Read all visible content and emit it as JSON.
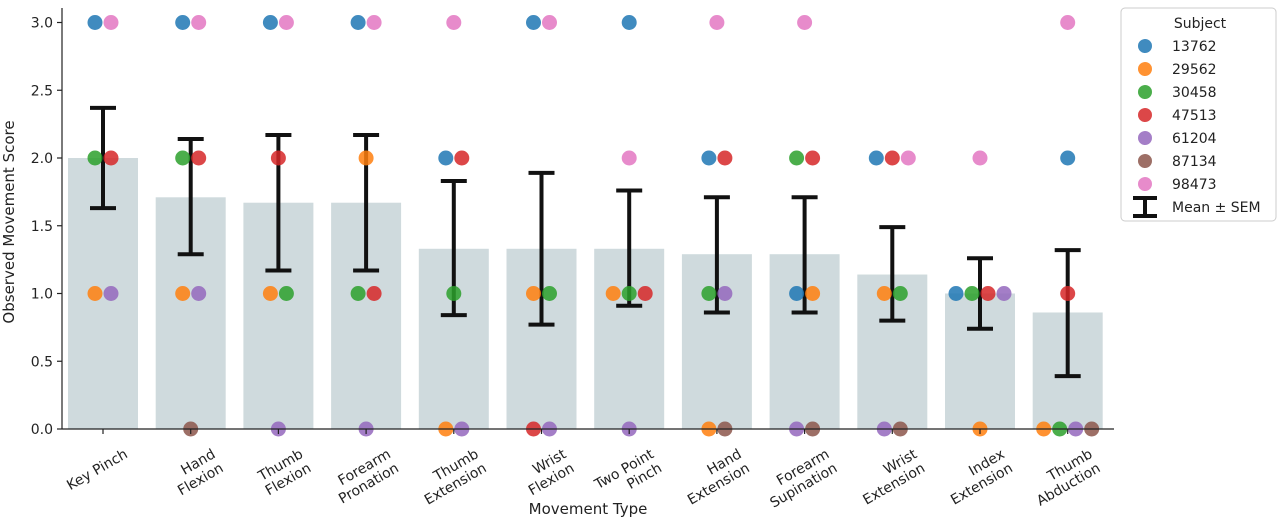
{
  "chart_data": {
    "type": "bar",
    "xlabel": "Movement Type",
    "ylabel": "Observed Movement Score",
    "ylim": [
      0,
      3.05
    ],
    "yticks": [
      0.0,
      0.5,
      1.0,
      1.5,
      2.0,
      2.5,
      3.0
    ],
    "ytick_labels": [
      "0.0",
      "0.5",
      "1.0",
      "1.5",
      "2.0",
      "2.5",
      "3.0"
    ],
    "grid": false,
    "categories": [
      [
        "Key Pinch"
      ],
      [
        "Hand",
        "Flexion"
      ],
      [
        "Thumb",
        "Flexion"
      ],
      [
        "Forearm",
        "Pronation"
      ],
      [
        "Thumb",
        "Extension"
      ],
      [
        "Wrist",
        "Flexion"
      ],
      [
        "Two Point",
        "Pinch"
      ],
      [
        "Hand",
        "Extension"
      ],
      [
        "Forearm",
        "Supination"
      ],
      [
        "Wrist",
        "Extension"
      ],
      [
        "Index",
        "Extension"
      ],
      [
        "Thumb",
        "Abduction"
      ]
    ],
    "bar_color": "#cfdadd",
    "means": [
      2.0,
      1.71,
      1.67,
      1.67,
      1.33,
      1.33,
      1.33,
      1.29,
      1.29,
      1.14,
      1.0,
      0.86
    ],
    "sem_upper": [
      2.37,
      2.14,
      2.17,
      2.17,
      1.83,
      1.89,
      1.76,
      1.71,
      1.71,
      1.49,
      1.26,
      1.32
    ],
    "sem_lower": [
      1.63,
      1.29,
      1.17,
      1.17,
      0.84,
      0.77,
      0.91,
      0.86,
      0.86,
      0.8,
      0.74,
      0.39
    ],
    "legend": {
      "title": "Subject",
      "placement": "right",
      "mean_label": "Mean ± SEM"
    },
    "series": [
      {
        "name": "13762",
        "color": "#1f77b4",
        "values": [
          3,
          3,
          3,
          3,
          2,
          3,
          3,
          2,
          1,
          2,
          1,
          2
        ]
      },
      {
        "name": "29562",
        "color": "#ff7f0e",
        "values": [
          1,
          1,
          1,
          2,
          0,
          1,
          1,
          0,
          1,
          1,
          0,
          0
        ]
      },
      {
        "name": "30458",
        "color": "#2ca02c",
        "values": [
          2,
          2,
          1,
          1,
          1,
          1,
          1,
          1,
          2,
          1,
          1,
          0
        ]
      },
      {
        "name": "47513",
        "color": "#d62728",
        "values": [
          2,
          2,
          2,
          1,
          2,
          0,
          1,
          2,
          2,
          2,
          1,
          1
        ]
      },
      {
        "name": "61204",
        "color": "#9467bd",
        "values": [
          1,
          1,
          0,
          0,
          0,
          0,
          0,
          1,
          0,
          0,
          1,
          0
        ]
      },
      {
        "name": "87134",
        "color": "#8c564b",
        "values": [
          null,
          0,
          null,
          null,
          null,
          null,
          null,
          0,
          0,
          0,
          null,
          0
        ]
      },
      {
        "name": "98473",
        "color": "#e377c2",
        "values": [
          3,
          3,
          3,
          3,
          3,
          3,
          2,
          3,
          3,
          2,
          2,
          3
        ]
      }
    ]
  }
}
